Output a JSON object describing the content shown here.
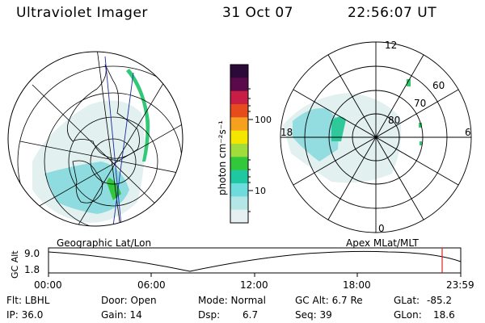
{
  "header": {
    "instrument": "Ultraviolet Imager",
    "date": "31 Oct 07",
    "time": "22:56:07 UT"
  },
  "geo_map": {
    "caption": "Geographic Lat/Lon"
  },
  "polar_map": {
    "caption": "Apex MLat/MLT",
    "mlt_labels": {
      "top": "12",
      "left": "18",
      "right": "6",
      "bottom": "0"
    },
    "lat_labels": [
      "80",
      "70",
      "60"
    ]
  },
  "colorbar": {
    "unit_label": "photon cm⁻²s⁻¹",
    "ticks": [
      "100",
      "10"
    ],
    "colors": [
      "#2b0a3a",
      "#5a0a4a",
      "#c81e46",
      "#e64b1e",
      "#f5a01e",
      "#f5e600",
      "#a0dc3c",
      "#32c83c",
      "#1ec8a0",
      "#6edcdc",
      "#b4e6e6",
      "#e6f0f0"
    ]
  },
  "altitude_plot": {
    "ylabel": "GC Alt",
    "yticks": [
      "9.0",
      "1.8"
    ],
    "xticks": [
      "00:00",
      "06:00",
      "12:00",
      "18:00",
      "23:59"
    ],
    "marker_color": "#e0201e"
  },
  "status": {
    "filter": "Flt: LBHL",
    "ip": "IP: 36.0",
    "door": "Door: Open",
    "gain": "Gain: 14",
    "mode": "Mode: Normal",
    "dsp_label": "Dsp:",
    "dsp_value": "6.7",
    "gc_alt": "GC Alt: 6.7 Re",
    "seq": "Seq: 39",
    "glat_label": "GLat:",
    "glat_value": "-85.2",
    "glon_label": "GLon:",
    "glon_value": "18.6"
  }
}
